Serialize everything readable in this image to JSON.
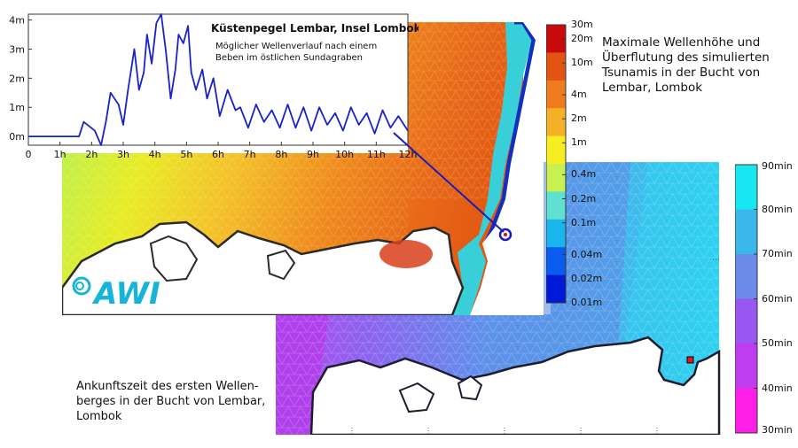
{
  "colors": {
    "height_scale": [
      "#0018d8",
      "#0a5cf0",
      "#19b6ee",
      "#5fe0d0",
      "#c8f050",
      "#f6ee20",
      "#f6b028",
      "#ef7c1c",
      "#e25412",
      "#c80a0a"
    ],
    "arrival_scale": [
      "#ff1ee6",
      "#c03cf0",
      "#9a56f0",
      "#6c8ae8",
      "#3ab8ec",
      "#18e6f0"
    ],
    "gauge_line": "#1822cc",
    "land_coast": "#2a2a2a"
  },
  "gauge_chart": {
    "title": "Küstenpegel Lembar, Insel Lombok",
    "subtitle": "Möglicher Wellenverlauf nach einem Beben im östlichen Sundagraben"
  },
  "height_map": {
    "caption": "Maximale Wellenhöhe und Überflutung des simulierten Tsunamis in der Bucht von Lembar, Lombok"
  },
  "arrival_map": {
    "caption": "Ankunftszeit des ersten Wellen-\nberges in der Bucht von Lembar,\nLombok"
  },
  "logo": {
    "text": "AWI"
  },
  "chart_data": [
    {
      "type": "line",
      "title": "Küstenpegel Lembar, Insel Lombok",
      "subtitle": "Möglicher Wellenverlauf nach einem Beben im östlichen Sundagraben",
      "xlabel": "",
      "ylabel": "",
      "x_tick_labels": [
        "0",
        "1h",
        "2h",
        "3h",
        "4h",
        "5h",
        "6h",
        "7h",
        "8h",
        "9h",
        "10h",
        "11h",
        "12h"
      ],
      "y_tick_labels": [
        "0m",
        "1m",
        "2m",
        "3m",
        "4m"
      ],
      "xlim": [
        0,
        12
      ],
      "ylim": [
        -0.3,
        4.2
      ],
      "series": [
        {
          "x": [
            0,
            1.6,
            1.75,
            2.1,
            2.3,
            2.45,
            2.6,
            2.85,
            3.0,
            3.15,
            3.35,
            3.5,
            3.65,
            3.75,
            3.9,
            4.05,
            4.2,
            4.35,
            4.5,
            4.65,
            4.75,
            4.9,
            5.05,
            5.15,
            5.3,
            5.5,
            5.65,
            5.85,
            6.05,
            6.3,
            6.55,
            6.7,
            6.95,
            7.2,
            7.45,
            7.7,
            7.95,
            8.2,
            8.45,
            8.7,
            8.95,
            9.2,
            9.45,
            9.7,
            9.95,
            10.2,
            10.45,
            10.7,
            10.95,
            11.2,
            11.45,
            11.7,
            12.0
          ],
          "y": [
            0,
            0,
            0.5,
            0.2,
            -0.3,
            0.5,
            1.5,
            1.1,
            0.4,
            1.6,
            3.0,
            1.6,
            2.2,
            3.5,
            2.5,
            3.9,
            4.2,
            2.9,
            1.3,
            2.3,
            3.5,
            3.2,
            3.8,
            2.2,
            1.6,
            2.3,
            1.3,
            2.0,
            0.7,
            1.6,
            0.9,
            1.0,
            0.3,
            1.1,
            0.5,
            0.9,
            0.3,
            1.1,
            0.3,
            1.0,
            0.2,
            1.0,
            0.4,
            0.8,
            0.2,
            1.0,
            0.4,
            0.8,
            0.1,
            0.9,
            0.3,
            0.7,
            0.2
          ]
        }
      ]
    },
    {
      "type": "heatmap",
      "title": "",
      "legend_labels": [
        "30m",
        "20m",
        "10m",
        "4m",
        "2m",
        "1m",
        "0.4m",
        "0.2m",
        "0.1m",
        "0.04m",
        "0.02m",
        "0.01m"
      ],
      "legend_values": [
        30,
        20,
        10,
        4,
        2,
        1,
        0.4,
        0.2,
        0.1,
        0.04,
        0.02,
        0.01
      ],
      "scale": "log"
    },
    {
      "type": "heatmap",
      "title": "",
      "legend_labels": [
        "90min",
        "80min",
        "70min",
        "60min",
        "50min",
        "40min",
        "30min"
      ],
      "legend_values": [
        90,
        80,
        70,
        60,
        50,
        40,
        30
      ],
      "scale": "linear"
    }
  ]
}
